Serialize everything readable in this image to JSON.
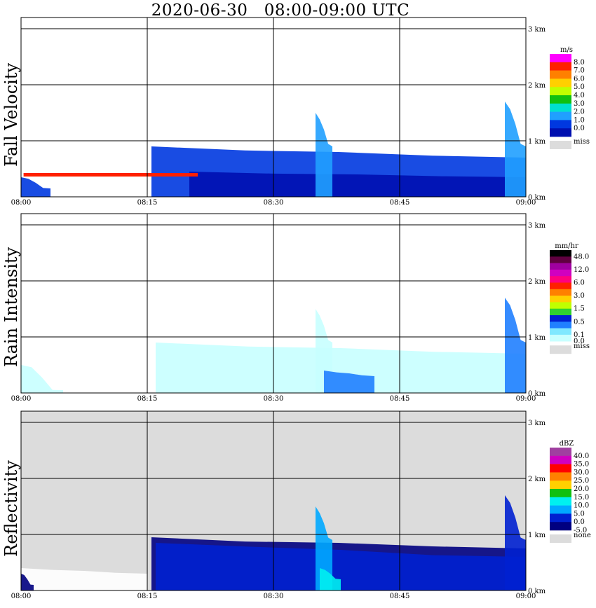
{
  "title": "2020-06-30   08:00-09:00 UTC",
  "colors": {
    "miss": "#dcdcdc",
    "grid": "#000000"
  },
  "chart_data": [
    {
      "type": "heatmap",
      "panel_label": "Fall Velocity",
      "x_ticks": [
        "08:00",
        "08:15",
        "08:30",
        "08:45",
        "09:00"
      ],
      "y_ticks": [
        "0 km",
        "1 km",
        "2 km",
        "3 km"
      ],
      "ylim_km": [
        0,
        3.2
      ],
      "background": "#ffffff",
      "colorbar": {
        "unit": "m/s",
        "levels": [
          "8.0",
          "7.0",
          "6.0",
          "5.0",
          "4.0",
          "3.0",
          "2.0",
          "1.0",
          "0.0"
        ],
        "colors": [
          "#ff00ff",
          "#ff2000",
          "#ff8000",
          "#ffd000",
          "#c0ff00",
          "#10c010",
          "#00e0d0",
          "#20a0ff",
          "#0038e0",
          "#0010b0"
        ],
        "miss_label": "miss"
      },
      "regions": [
        {
          "t": [
            0,
            3.5
          ],
          "top_km": [
            0.35,
            0.15
          ],
          "value": "1.0"
        },
        {
          "t": [
            15.5,
            60
          ],
          "top_km": [
            0.9,
            0.7
          ],
          "value": "1.0"
        },
        {
          "t": [
            20,
            60
          ],
          "top_km": [
            0.45,
            0.35
          ],
          "value": "0.0"
        },
        {
          "t": [
            35,
            37
          ],
          "top_km": [
            1.5,
            0.9
          ],
          "value": "2.0"
        },
        {
          "t": [
            57.5,
            60
          ],
          "top_km": [
            1.7,
            0.9
          ],
          "value": "2.0"
        }
      ],
      "streaks": [
        {
          "t": [
            0.3,
            21
          ],
          "km": 0.4,
          "value": "8.0"
        }
      ]
    },
    {
      "type": "heatmap",
      "panel_label": "Rain Intensity",
      "x_ticks": [
        "08:00",
        "08:15",
        "08:30",
        "08:45",
        "09:00"
      ],
      "y_ticks": [
        "0 km",
        "1 km",
        "2 km",
        "3 km"
      ],
      "ylim_km": [
        0,
        3.2
      ],
      "background": "#ffffff",
      "colorbar": {
        "unit": "mm/hr",
        "levels": [
          "48.0",
          "",
          "12.0",
          "",
          "6.0",
          "",
          "3.0",
          "",
          "1.5",
          "",
          "0.5",
          "",
          "0.1",
          "0.0"
        ],
        "colors": [
          "#000000",
          "#600040",
          "#a000a0",
          "#d000c0",
          "#ff0080",
          "#ff2000",
          "#ff8000",
          "#ffd000",
          "#c0ff00",
          "#30d030",
          "#0020d0",
          "#2080ff",
          "#80e8ff",
          "#c8ffff"
        ],
        "miss_label": "miss"
      },
      "regions": [
        {
          "t": [
            0,
            5
          ],
          "top_km": [
            0.5,
            0.05
          ],
          "value": "0.1"
        },
        {
          "t": [
            16,
            60
          ],
          "top_km": [
            0.9,
            0.7
          ],
          "value": "0.1"
        },
        {
          "t": [
            35,
            37
          ],
          "top_km": [
            1.5,
            0.9
          ],
          "value": "0.1"
        },
        {
          "t": [
            36,
            42
          ],
          "top_km": [
            0.4,
            0.3
          ],
          "value": "0.5"
        },
        {
          "t": [
            57.5,
            60
          ],
          "top_km": [
            1.7,
            0.9
          ],
          "value": "0.5"
        }
      ],
      "streaks": []
    },
    {
      "type": "heatmap",
      "panel_label": "Reflectivity",
      "x_ticks": [
        "08:00",
        "08:15",
        "08:30",
        "08:45",
        "09:00"
      ],
      "y_ticks": [
        "0 km",
        "1 km",
        "2 km",
        "3 km"
      ],
      "ylim_km": [
        0,
        3.2
      ],
      "background": "#dcdcdc",
      "colorbar": {
        "unit": "dBZ",
        "levels": [
          "40.0",
          "35.0",
          "30.0",
          "25.0",
          "20.0",
          "15.0",
          "10.0",
          "5.0",
          "0.0",
          "-5.0"
        ],
        "colors": [
          "#a040a0",
          "#d000c0",
          "#ff0000",
          "#ff8000",
          "#ffd000",
          "#10c010",
          "#00f0f0",
          "#00a8ff",
          "#0020d0",
          "#000080"
        ],
        "miss_label": "none"
      },
      "regions": [
        {
          "t": [
            0,
            15
          ],
          "top_km": [
            0.4,
            0.3
          ],
          "value": "none"
        },
        {
          "t": [
            0,
            1.5
          ],
          "top_km": [
            0.3,
            0.1
          ],
          "value": "-5.0"
        },
        {
          "t": [
            15.5,
            60
          ],
          "top_km": [
            0.95,
            0.75
          ],
          "value": "0.0"
        },
        {
          "t": [
            16,
            60
          ],
          "top_km": [
            0.85,
            0.6
          ],
          "value": "5.0"
        },
        {
          "t": [
            35,
            37
          ],
          "top_km": [
            1.5,
            0.9
          ],
          "value": "10.0"
        },
        {
          "t": [
            57.5,
            60
          ],
          "top_km": [
            1.7,
            0.9
          ],
          "value": "5.0"
        },
        {
          "t": [
            35.5,
            38
          ],
          "top_km": [
            0.4,
            0.2
          ],
          "value": "15.0"
        }
      ],
      "streaks": []
    }
  ]
}
